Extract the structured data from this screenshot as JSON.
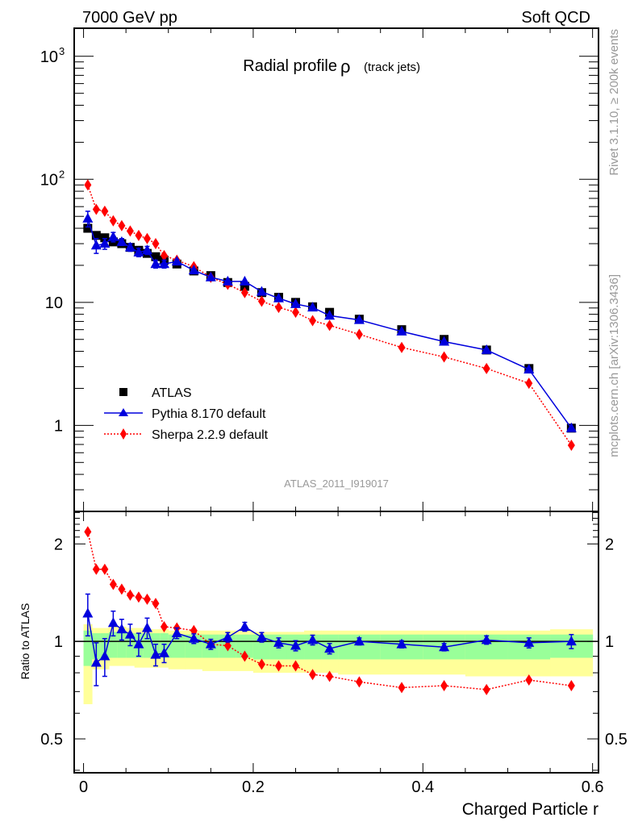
{
  "header": {
    "left": "7000 GeV pp",
    "right": "Soft QCD"
  },
  "side_labels": {
    "rivet": "Rivet 3.1.10, ≥ 200k events",
    "mcplots": "mcplots.cern.ch [arXiv:1306.3436]"
  },
  "colors": {
    "data": "#000000",
    "pythia": "#0000dd",
    "sherpa": "#ff0000",
    "band_inner": "#99ff99",
    "band_outer": "#ffff99",
    "watermark": "#999999"
  },
  "chart_data": [
    {
      "type": "line",
      "panel": "main",
      "title": "Radial profile",
      "title_symbol": "ρ",
      "title_suffix": "(track jets)",
      "analysis_id": "ATLAS_2011_I919017",
      "xlabel": "Charged Particle r",
      "ylabel": "",
      "yscale": "log",
      "xlim": [
        -0.011,
        0.607
      ],
      "ylim": [
        0.2,
        1690
      ],
      "y_tick_labels": [
        {
          "value": 1000,
          "base": "10",
          "exp": "3"
        },
        {
          "value": 100,
          "base": "10",
          "exp": "2"
        },
        {
          "value": 10,
          "base": "10",
          "exp": ""
        },
        {
          "value": 1,
          "base": "1",
          "exp": ""
        }
      ],
      "x_ticks": [
        0,
        0.2,
        0.4,
        0.6
      ],
      "x_tick_labels": [
        "0",
        "0.2",
        "0.4",
        "0.6"
      ],
      "legend": {
        "placement": "lower-left",
        "entries": [
          "ATLAS",
          "Pythia 8.170 default",
          "Sherpa 2.2.9 default"
        ]
      },
      "x": [
        0.005,
        0.015,
        0.025,
        0.035,
        0.045,
        0.055,
        0.065,
        0.075,
        0.085,
        0.095,
        0.11,
        0.13,
        0.15,
        0.17,
        0.19,
        0.21,
        0.23,
        0.25,
        0.27,
        0.29,
        0.325,
        0.375,
        0.425,
        0.475,
        0.525,
        0.575
      ],
      "series": [
        {
          "name": "ATLAS",
          "marker": "square",
          "values": [
            40,
            35,
            33.5,
            31,
            30,
            28,
            26.5,
            25,
            23.5,
            22,
            20.5,
            18,
            16.5,
            14.5,
            13.5,
            12,
            11,
            10,
            9.2,
            8.3,
            7.3,
            6.0,
            5.0,
            4.1,
            2.9,
            0.95
          ]
        },
        {
          "name": "Pythia 8.170 default",
          "marker": "triangle",
          "values": [
            48,
            29,
            30,
            34,
            31,
            28,
            25.5,
            26.5,
            20.5,
            20.5,
            21.5,
            18.2,
            16,
            14.8,
            14.8,
            12.2,
            10.8,
            9.7,
            9.1,
            7.8,
            7.2,
            5.8,
            4.8,
            4.1,
            2.85,
            0.95
          ],
          "errors": [
            7,
            4,
            3,
            3,
            2,
            2,
            2,
            2,
            1.5,
            1.5,
            0.8,
            0.6,
            0.5,
            0.5,
            0.5,
            0.4,
            0.4,
            0.3,
            0.3,
            0.3,
            0.2,
            0.2,
            0.15,
            0.12,
            0.1,
            0.05
          ]
        },
        {
          "name": "Sherpa 2.2.9 default",
          "marker": "diamond",
          "values": [
            90,
            57,
            55,
            46,
            42,
            38,
            35,
            33,
            30,
            24,
            22,
            19.5,
            16,
            14,
            12,
            10.2,
            9.1,
            8.3,
            7.1,
            6.5,
            5.5,
            4.3,
            3.6,
            2.9,
            2.2,
            0.69
          ]
        }
      ]
    },
    {
      "type": "line",
      "panel": "ratio",
      "ylabel": "Ratio to ATLAS",
      "xlabel": "Charged Particle r",
      "yscale": "log",
      "xlim": [
        -0.011,
        0.607
      ],
      "ylim": [
        0.393,
        2.52
      ],
      "y_tick_labels": [
        {
          "value": 2,
          "label": "2"
        },
        {
          "value": 1,
          "label": "1"
        },
        {
          "value": 0.5,
          "label": "0.5"
        }
      ],
      "x": [
        0.005,
        0.015,
        0.025,
        0.035,
        0.045,
        0.055,
        0.065,
        0.075,
        0.085,
        0.095,
        0.11,
        0.13,
        0.15,
        0.17,
        0.19,
        0.21,
        0.23,
        0.25,
        0.27,
        0.29,
        0.325,
        0.375,
        0.425,
        0.475,
        0.525,
        0.575
      ],
      "bin_edges": [
        0,
        0.01,
        0.02,
        0.03,
        0.04,
        0.05,
        0.06,
        0.07,
        0.08,
        0.09,
        0.1,
        0.12,
        0.14,
        0.16,
        0.18,
        0.2,
        0.22,
        0.24,
        0.26,
        0.28,
        0.3,
        0.35,
        0.4,
        0.45,
        0.5,
        0.55,
        0.6
      ],
      "bands": {
        "outer_low": [
          0.64,
          0.82,
          0.82,
          0.84,
          0.84,
          0.84,
          0.83,
          0.83,
          0.83,
          0.83,
          0.82,
          0.82,
          0.81,
          0.81,
          0.81,
          0.8,
          0.8,
          0.8,
          0.8,
          0.8,
          0.79,
          0.79,
          0.79,
          0.78,
          0.78,
          0.78
        ],
        "outer_high": [
          1.13,
          1.1,
          1.1,
          1.11,
          1.11,
          1.1,
          1.1,
          1.09,
          1.09,
          1.09,
          1.08,
          1.08,
          1.08,
          1.08,
          1.08,
          1.07,
          1.07,
          1.07,
          1.08,
          1.08,
          1.08,
          1.08,
          1.08,
          1.08,
          1.08,
          1.09
        ],
        "inner_low": [
          0.84,
          0.88,
          0.88,
          0.89,
          0.89,
          0.89,
          0.89,
          0.89,
          0.89,
          0.89,
          0.89,
          0.89,
          0.89,
          0.89,
          0.89,
          0.88,
          0.88,
          0.88,
          0.88,
          0.88,
          0.88,
          0.88,
          0.88,
          0.88,
          0.88,
          0.89
        ],
        "inner_high": [
          1.08,
          1.06,
          1.06,
          1.07,
          1.07,
          1.06,
          1.06,
          1.06,
          1.06,
          1.06,
          1.05,
          1.05,
          1.05,
          1.05,
          1.05,
          1.05,
          1.05,
          1.05,
          1.05,
          1.05,
          1.05,
          1.05,
          1.05,
          1.05,
          1.05,
          1.05
        ]
      },
      "series": [
        {
          "name": "Pythia 8.170 default",
          "marker": "triangle",
          "values": [
            1.22,
            0.86,
            0.9,
            1.14,
            1.09,
            1.05,
            0.98,
            1.1,
            0.91,
            0.92,
            1.06,
            1.02,
            0.98,
            1.03,
            1.11,
            1.03,
            0.99,
            0.97,
            1.01,
            0.95,
            1.0,
            0.98,
            0.96,
            1.01,
            0.99,
            1.0
          ],
          "errors": [
            0.18,
            0.13,
            0.12,
            0.1,
            0.08,
            0.08,
            0.08,
            0.08,
            0.07,
            0.06,
            0.04,
            0.035,
            0.035,
            0.035,
            0.035,
            0.035,
            0.035,
            0.035,
            0.035,
            0.035,
            0.025,
            0.025,
            0.025,
            0.03,
            0.035,
            0.05
          ]
        },
        {
          "name": "Sherpa 2.2.9 default",
          "marker": "diamond",
          "values": [
            2.18,
            1.67,
            1.67,
            1.5,
            1.45,
            1.39,
            1.37,
            1.35,
            1.31,
            1.11,
            1.1,
            1.08,
            0.98,
            0.97,
            0.9,
            0.85,
            0.84,
            0.84,
            0.79,
            0.78,
            0.75,
            0.72,
            0.73,
            0.71,
            0.76,
            0.73
          ]
        }
      ]
    }
  ]
}
